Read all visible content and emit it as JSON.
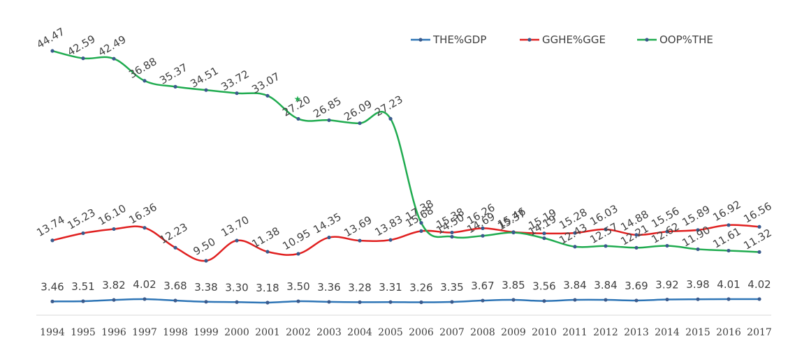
{
  "chart_data": {
    "type": "line",
    "x": [
      "1994",
      "1995",
      "1996",
      "1997",
      "1998",
      "1999",
      "2000",
      "2001",
      "2002",
      "2003",
      "2004",
      "2005",
      "2006",
      "2007",
      "2008",
      "2009",
      "2010",
      "2011",
      "2012",
      "2013",
      "2014",
      "2015",
      "2016",
      "2017"
    ],
    "series": [
      {
        "name": "THE%GDP",
        "color": "#2e75b6",
        "values": [
          3.46,
          3.51,
          3.82,
          4.02,
          3.68,
          3.38,
          3.3,
          3.18,
          3.5,
          3.36,
          3.28,
          3.31,
          3.26,
          3.35,
          3.67,
          3.85,
          3.56,
          3.84,
          3.84,
          3.69,
          3.92,
          3.98,
          4.01,
          4.02
        ],
        "labels": [
          "3.46",
          "3.51",
          "3.82",
          "4.02",
          "3.68",
          "3.38",
          "3.30",
          "3.18",
          "3.50",
          "3.36",
          "3.28",
          "3.31",
          "3.26",
          "3.35",
          "3.67",
          "3.85",
          "3.56",
          "3.84",
          "3.84",
          "3.69",
          "3.92",
          "3.98",
          "4.01",
          "4.02"
        ]
      },
      {
        "name": "GGHE%GGE",
        "color": "#e02020",
        "values": [
          13.74,
          15.23,
          16.1,
          16.36,
          12.23,
          9.5,
          13.7,
          11.38,
          10.95,
          14.35,
          13.69,
          13.83,
          15.68,
          15.38,
          16.26,
          15.46,
          15.19,
          15.28,
          16.03,
          14.88,
          15.56,
          15.89,
          16.92,
          16.56
        ],
        "labels": [
          "13.74",
          "15.23",
          "16.10",
          "16.36",
          "12.23",
          "9.50",
          "13.70",
          "11.38",
          "10.95",
          "14.35",
          "13.69",
          "13.83",
          "15.68",
          "15.38",
          "16.26",
          "15.46",
          "15.19",
          "15.28",
          "16.03",
          "14.88",
          "15.56",
          "15.89",
          "16.92",
          "16.56"
        ]
      },
      {
        "name": "OOP%THE",
        "color": "#1fab4f",
        "values": [
          44.47,
          42.59,
          42.49,
          36.88,
          35.37,
          34.51,
          33.72,
          33.07,
          27.2,
          26.85,
          26.09,
          27.23,
          17.38,
          14.5,
          14.69,
          15.37,
          14.19,
          12.43,
          12.57,
          12.21,
          12.62,
          11.9,
          11.61,
          11.32
        ],
        "labels": [
          "44.47",
          "42.59",
          "42.49",
          "36.88",
          "35.37",
          "34.51",
          "33.72",
          "33.07",
          "27.20",
          "26.85",
          "26.09",
          "27.23",
          "17.38",
          "14.50",
          "14.69",
          "15.37",
          "14.19",
          "12.43",
          "12.57",
          "12.21",
          "12.62",
          "11.90",
          "11.61",
          "11.32"
        ]
      }
    ],
    "annotation": "★",
    "legend_position": "top-right",
    "grid": false,
    "title": "",
    "xlabel": "",
    "ylabel": "",
    "marker_color": "#3a5a8c",
    "axis_color": "#d9d9d9"
  }
}
